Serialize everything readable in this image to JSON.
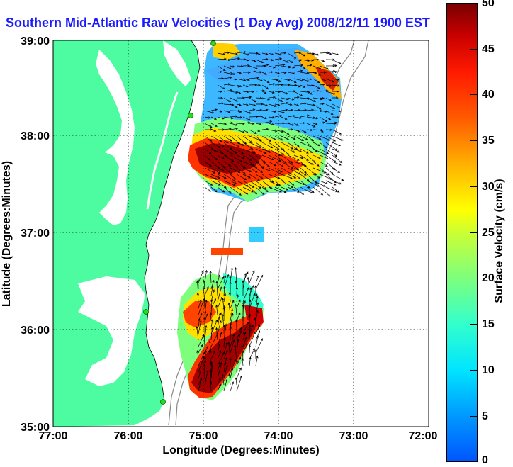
{
  "title": "Southern Mid-Atlantic Raw Velocities (1 Day Avg) 2008/12/11 1900 EST",
  "x_axis": {
    "label": "Longitude (Degrees:Minutes)",
    "ticks": [
      "77:00",
      "76:00",
      "75:00",
      "74:00",
      "73:00",
      "72:00"
    ]
  },
  "y_axis": {
    "label": "Latitude (Degrees:Minutes)",
    "ticks": [
      "39:00",
      "38:00",
      "37:00",
      "36:00",
      "35:00"
    ]
  },
  "colorbar": {
    "label": "Surface Velocity (cm/s)",
    "ticks": [
      "50",
      "45",
      "40",
      "35",
      "30",
      "25",
      "20",
      "15",
      "10",
      "5",
      "0"
    ],
    "range": [
      0,
      50
    ]
  },
  "colors": {
    "land": "#4dfba0",
    "title": "#1a1aff",
    "isobath": "#888888",
    "station": "#22dd22"
  }
}
